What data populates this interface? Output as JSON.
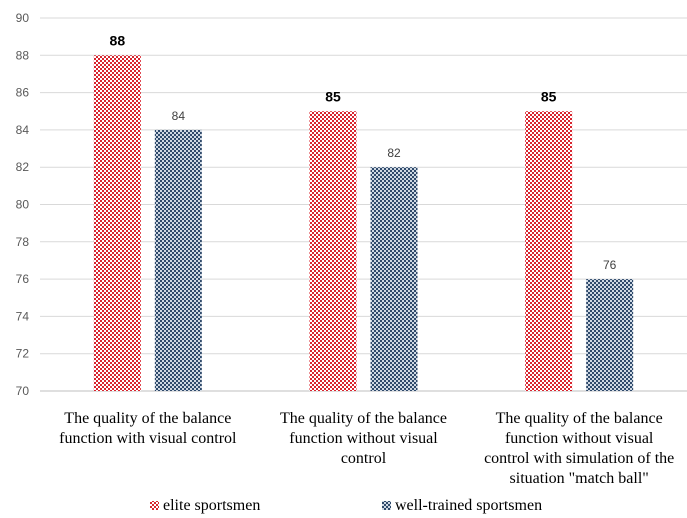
{
  "chart_data": {
    "type": "bar",
    "title": "",
    "xlabel": "",
    "ylabel": "",
    "ylim": [
      70,
      90
    ],
    "yticks": [
      70,
      72,
      74,
      76,
      78,
      80,
      82,
      84,
      86,
      88,
      90
    ],
    "grid": true,
    "legend_position": "bottom",
    "categories": [
      [
        "The quality of the balance",
        "function with visual control"
      ],
      [
        "The quality of the balance",
        "function without visual",
        "control"
      ],
      [
        "The quality of the balance",
        "function without visual",
        "control with simulation of the",
        "situation \"match ball\""
      ]
    ],
    "series": [
      {
        "name": "elite sportsmen",
        "values": [
          88,
          85,
          85
        ],
        "color": "#d9252f"
      },
      {
        "name": "well-trained sportsmen",
        "values": [
          84,
          82,
          76
        ],
        "color": "#2f4a6b"
      }
    ]
  }
}
